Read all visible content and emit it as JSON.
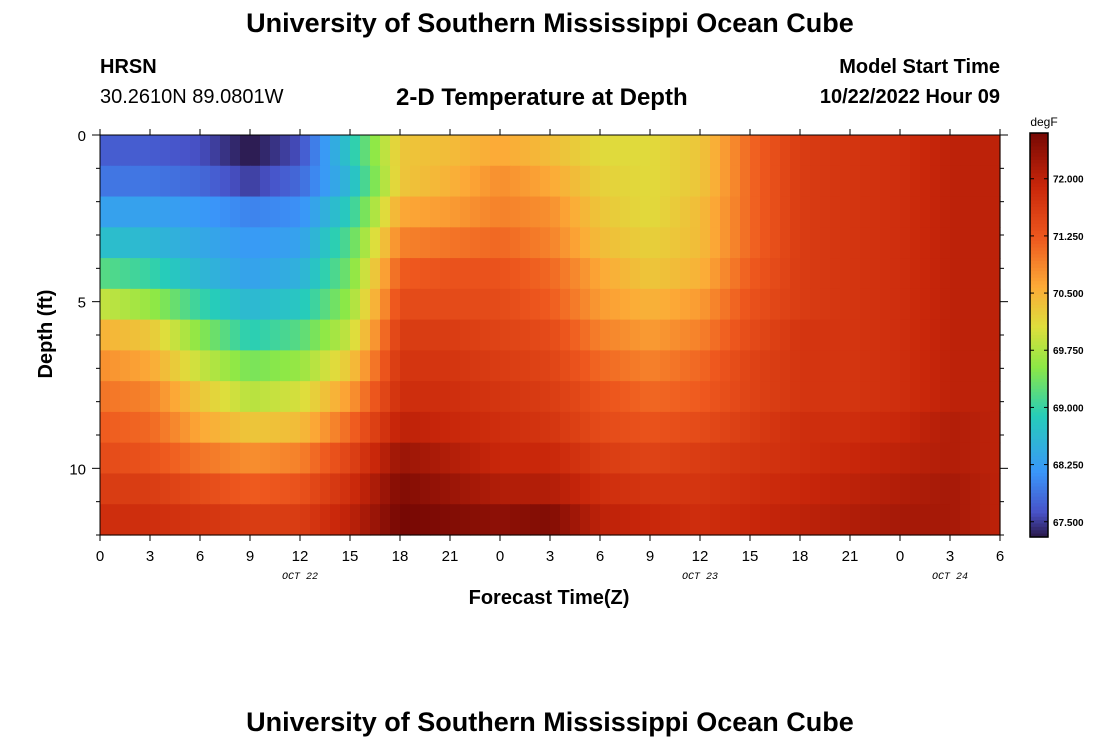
{
  "header": {
    "title": "University of Southern Mississippi Ocean Cube",
    "station": "HRSN",
    "coords": "30.2610N  89.0801W",
    "subtitle": "2-D Temperature at Depth",
    "model_start_label": "Model Start Time",
    "model_start_value": "10/22/2022 Hour 09"
  },
  "footer": {
    "title": "University of Southern Mississippi Ocean Cube"
  },
  "chart_data": {
    "type": "heatmap",
    "title": "2-D Temperature at Depth",
    "xlabel": "Forecast Time(Z)",
    "ylabel": "Depth (ft)",
    "x_tick_labels": [
      "0",
      "3",
      "6",
      "9",
      "12",
      "15",
      "18",
      "21",
      "0",
      "3",
      "6",
      "9",
      "12",
      "15",
      "18",
      "21",
      "0",
      "3",
      "6"
    ],
    "x_date_labels": [
      {
        "label": "OCT 22",
        "tick": 4
      },
      {
        "label": "OCT 23",
        "tick": 12
      },
      {
        "label": "OCT 24",
        "tick": 17
      }
    ],
    "xlim_hours": [
      0,
      54
    ],
    "y_tick_labels": [
      "0",
      "5",
      "10"
    ],
    "y_tick_values": [
      0,
      5,
      10
    ],
    "ylim": [
      0,
      12
    ],
    "y_inverted": true,
    "colorbar": {
      "unit": "degF",
      "tick_labels": [
        "72.000",
        "71.250",
        "70.500",
        "69.750",
        "69.000",
        "68.250",
        "67.500"
      ],
      "tick_values": [
        72.0,
        71.25,
        70.5,
        69.75,
        69.0,
        68.25,
        67.5
      ],
      "range": [
        67.3,
        72.6
      ]
    },
    "x_hours": [
      0,
      3,
      6,
      9,
      12,
      15,
      18,
      21,
      24,
      27,
      30,
      33,
      36,
      39,
      42,
      45,
      48,
      51,
      54
    ],
    "rows": [
      {
        "depth": 0,
        "values": [
          67.7,
          67.7,
          67.6,
          67.3,
          67.6,
          68.8,
          70.3,
          70.4,
          70.6,
          70.4,
          70.1,
          70.1,
          70.3,
          71.1,
          71.6,
          71.7,
          71.8,
          72.0,
          72.0
        ]
      },
      {
        "depth": 1,
        "values": [
          67.9,
          67.9,
          67.8,
          67.5,
          67.8,
          68.6,
          70.3,
          70.5,
          70.8,
          70.6,
          70.2,
          70.1,
          70.3,
          71.1,
          71.6,
          71.7,
          71.8,
          72.0,
          72.0
        ]
      },
      {
        "depth": 2,
        "values": [
          68.3,
          68.3,
          68.2,
          68.0,
          68.1,
          68.9,
          70.6,
          70.7,
          70.9,
          70.8,
          70.3,
          70.1,
          70.4,
          71.1,
          71.6,
          71.7,
          71.8,
          72.0,
          72.0
        ]
      },
      {
        "depth": 3,
        "values": [
          68.7,
          68.6,
          68.4,
          68.2,
          68.3,
          69.2,
          70.9,
          71.0,
          71.1,
          70.9,
          70.4,
          70.2,
          70.4,
          71.1,
          71.6,
          71.7,
          71.8,
          72.0,
          72.0
        ]
      },
      {
        "depth": 4,
        "values": [
          69.2,
          69.0,
          68.6,
          68.3,
          68.5,
          69.4,
          71.2,
          71.3,
          71.3,
          71.1,
          70.6,
          70.3,
          70.5,
          71.2,
          71.6,
          71.7,
          71.8,
          72.0,
          72.0
        ]
      },
      {
        "depth": 5,
        "values": [
          69.9,
          69.6,
          69.0,
          68.6,
          68.8,
          69.6,
          71.4,
          71.4,
          71.4,
          71.2,
          70.7,
          70.5,
          70.7,
          71.3,
          71.6,
          71.7,
          71.8,
          72.0,
          72.0
        ]
      },
      {
        "depth": 6,
        "values": [
          70.5,
          70.3,
          69.5,
          68.9,
          69.2,
          69.9,
          71.6,
          71.6,
          71.5,
          71.4,
          70.9,
          70.7,
          70.9,
          71.4,
          71.7,
          71.7,
          71.8,
          72.0,
          72.0
        ]
      },
      {
        "depth": 7,
        "values": [
          70.8,
          70.6,
          69.9,
          69.4,
          69.6,
          70.3,
          71.7,
          71.7,
          71.6,
          71.5,
          71.1,
          70.9,
          71.1,
          71.5,
          71.7,
          71.7,
          71.8,
          72.0,
          72.0
        ]
      },
      {
        "depth": 8,
        "values": [
          71.0,
          70.9,
          70.3,
          69.8,
          70.0,
          70.7,
          71.8,
          71.8,
          71.7,
          71.6,
          71.3,
          71.1,
          71.2,
          71.5,
          71.7,
          71.7,
          71.8,
          72.0,
          72.0
        ]
      },
      {
        "depth": 9,
        "values": [
          71.2,
          71.1,
          70.6,
          70.3,
          70.4,
          71.1,
          72.0,
          71.9,
          71.8,
          71.7,
          71.4,
          71.3,
          71.4,
          71.6,
          71.8,
          71.8,
          71.9,
          72.1,
          72.0
        ]
      },
      {
        "depth": 10,
        "values": [
          71.4,
          71.3,
          71.0,
          70.8,
          70.9,
          71.5,
          72.3,
          72.1,
          71.9,
          71.9,
          71.6,
          71.5,
          71.6,
          71.7,
          71.8,
          71.9,
          72.0,
          72.1,
          72.0
        ]
      },
      {
        "depth": 11,
        "values": [
          71.6,
          71.6,
          71.4,
          71.2,
          71.3,
          71.8,
          72.5,
          72.3,
          72.1,
          72.1,
          71.8,
          71.7,
          71.7,
          71.8,
          71.9,
          72.0,
          72.1,
          72.2,
          72.0
        ]
      },
      {
        "depth": 12,
        "values": [
          71.8,
          71.8,
          71.7,
          71.6,
          71.6,
          72.0,
          72.6,
          72.5,
          72.4,
          72.5,
          72.0,
          71.9,
          71.8,
          71.9,
          72.0,
          72.1,
          72.2,
          72.2,
          72.0
        ]
      }
    ]
  }
}
